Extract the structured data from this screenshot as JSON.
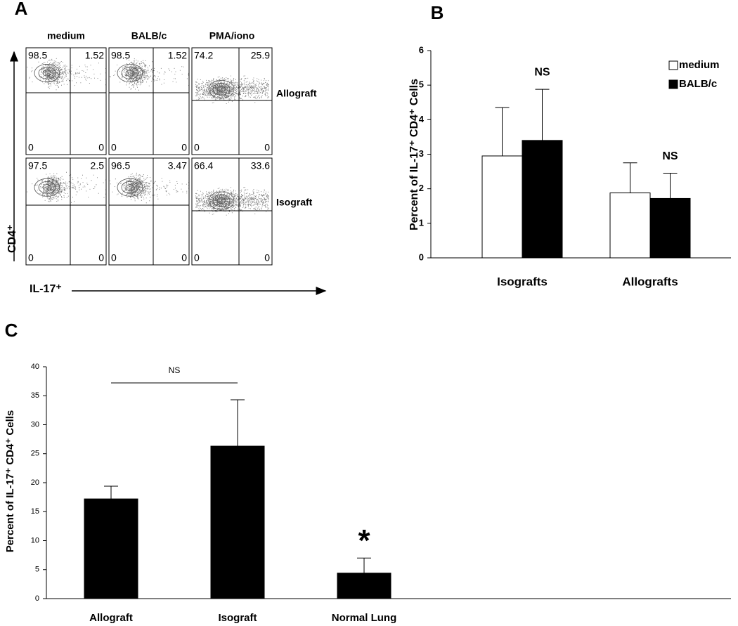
{
  "chart_data": [
    {
      "type": "flow",
      "panel": "A",
      "columns": [
        "medium",
        "BALB/c",
        "PMA/iono"
      ],
      "rows": [
        "Allograft",
        "Isograft"
      ],
      "quadrants": [
        [
          [
            98.5,
            1.52,
            0,
            0
          ],
          [
            98.5,
            1.52,
            0,
            0
          ],
          [
            74.2,
            25.9,
            0,
            0
          ]
        ],
        [
          [
            97.5,
            2.5,
            0,
            0
          ],
          [
            96.5,
            3.47,
            0,
            0
          ],
          [
            66.4,
            33.6,
            0,
            0
          ]
        ]
      ],
      "xlabel": "IL-17⁺",
      "ylabel": "CD4⁺"
    },
    {
      "type": "bar",
      "panel": "B",
      "categories": [
        "Isografts",
        "Allografts"
      ],
      "series": [
        {
          "name": "medium",
          "color": "#ffffff",
          "values": [
            2.95,
            1.88
          ],
          "errors": [
            1.4,
            0.87
          ]
        },
        {
          "name": "BALB/c",
          "color": "#000000",
          "values": [
            3.4,
            1.72
          ],
          "errors": [
            1.48,
            0.73
          ]
        }
      ],
      "ylabel": "Percent of IL-17⁺ CD4⁺ Cells",
      "ylim": [
        0,
        6
      ],
      "yticks": [
        0,
        1,
        2,
        3,
        4,
        5,
        6
      ],
      "annotations": [
        "NS",
        "NS"
      ],
      "legend": "top-right"
    },
    {
      "type": "bar",
      "panel": "C",
      "categories": [
        "Allograft",
        "Isograft",
        "Normal Lung"
      ],
      "values": [
        17.2,
        26.3,
        4.4
      ],
      "errors": [
        2.2,
        8.0,
        2.6
      ],
      "color": "#000000",
      "ylabel": "Percent of IL-17⁺ CD4⁺ Cells",
      "ylim": [
        0,
        40
      ],
      "yticks": [
        0,
        5,
        10,
        15,
        20,
        25,
        30,
        35,
        40
      ],
      "annotations": [
        "NS",
        "*"
      ]
    }
  ]
}
